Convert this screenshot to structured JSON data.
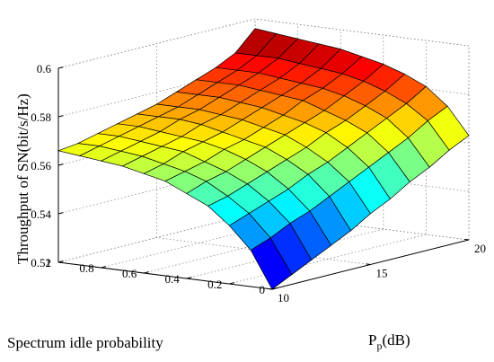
{
  "chart_data": {
    "type": "surface3d",
    "title": "",
    "xlabel": "Spectrum idle probability",
    "ylabel_main": "P",
    "ylabel_sub": "p",
    "ylabel_unit": "(dB)",
    "zlabel": "Throughput of SN(bit/s/Hz)",
    "x_range": [
      0,
      1
    ],
    "y_range": [
      10,
      20
    ],
    "z_range": [
      0.52,
      0.6
    ],
    "x_ticks": [
      0,
      0.2,
      0.4,
      0.6,
      0.8,
      1
    ],
    "y_ticks": [
      10,
      15,
      20
    ],
    "z_ticks": [
      0.52,
      0.54,
      0.56,
      0.58,
      0.6
    ],
    "x_tick_labels": [
      "0",
      "0.2",
      "0.4",
      "0.6",
      "0.8",
      "1"
    ],
    "y_tick_labels": [
      "10",
      "15",
      "20"
    ],
    "z_tick_labels": [
      "0.52",
      "0.54",
      "0.56",
      "0.58",
      "0.6"
    ],
    "grid": true,
    "colormap": "jet",
    "x": [
      0,
      0.1,
      0.2,
      0.3,
      0.4,
      0.5,
      0.6,
      0.7,
      0.8,
      0.9,
      1.0
    ],
    "y": [
      10,
      11,
      12,
      13,
      14,
      15,
      16,
      17,
      18,
      19,
      20
    ],
    "z": [
      [
        0.52,
        0.535,
        0.544,
        0.551,
        0.555,
        0.559,
        0.561,
        0.563,
        0.564,
        0.565,
        0.566
      ],
      [
        0.524,
        0.538,
        0.547,
        0.553,
        0.558,
        0.561,
        0.563,
        0.565,
        0.566,
        0.567,
        0.567
      ],
      [
        0.528,
        0.542,
        0.55,
        0.556,
        0.56,
        0.563,
        0.566,
        0.567,
        0.568,
        0.569,
        0.569
      ],
      [
        0.532,
        0.545,
        0.553,
        0.559,
        0.563,
        0.566,
        0.568,
        0.569,
        0.57,
        0.571,
        0.571
      ],
      [
        0.536,
        0.549,
        0.557,
        0.562,
        0.566,
        0.568,
        0.57,
        0.572,
        0.573,
        0.573,
        0.573
      ],
      [
        0.541,
        0.553,
        0.56,
        0.565,
        0.569,
        0.571,
        0.573,
        0.574,
        0.575,
        0.575,
        0.575
      ],
      [
        0.545,
        0.557,
        0.564,
        0.569,
        0.572,
        0.574,
        0.576,
        0.577,
        0.578,
        0.578,
        0.578
      ],
      [
        0.55,
        0.561,
        0.568,
        0.572,
        0.575,
        0.578,
        0.579,
        0.58,
        0.581,
        0.581,
        0.581
      ],
      [
        0.554,
        0.565,
        0.572,
        0.576,
        0.579,
        0.581,
        0.582,
        0.583,
        0.584,
        0.584,
        0.584
      ],
      [
        0.559,
        0.57,
        0.576,
        0.58,
        0.583,
        0.585,
        0.586,
        0.587,
        0.588,
        0.588,
        0.588
      ],
      [
        0.563,
        0.574,
        0.581,
        0.585,
        0.588,
        0.59,
        0.592,
        0.593,
        0.594,
        0.595,
        0.596
      ]
    ]
  }
}
